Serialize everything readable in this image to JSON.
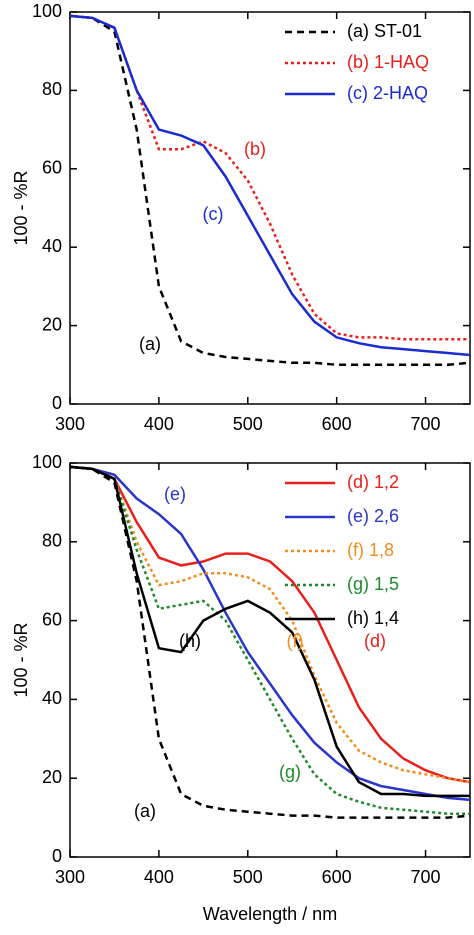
{
  "chart_data": [
    {
      "type": "line",
      "y_label": "100 - %R",
      "x": [
        300,
        325,
        350,
        375,
        400,
        425,
        450,
        475,
        500,
        525,
        550,
        575,
        600,
        625,
        650,
        675,
        700,
        725,
        750
      ],
      "xlim": [
        300,
        750
      ],
      "xticks": [
        300,
        400,
        500,
        600,
        700
      ],
      "ylim": [
        0,
        100
      ],
      "yticks": [
        0,
        20,
        40,
        60,
        80,
        100
      ],
      "legend": "upper right",
      "series": [
        {
          "name": "(a) ST-01",
          "color": "#000000",
          "dash": "dashed",
          "values": [
            99,
            98.5,
            95,
            70,
            30,
            16,
            13,
            12,
            11.5,
            11,
            10.5,
            10.5,
            10,
            10,
            10,
            10,
            10,
            10,
            10.5
          ]
        },
        {
          "name": "(b) 1-HAQ",
          "color": "#e8201c",
          "dash": "dotted",
          "values": [
            99,
            98.5,
            96,
            80,
            65,
            65,
            67,
            64,
            57,
            46,
            33,
            23,
            18,
            17,
            17,
            16.5,
            16.5,
            16.5,
            16.5
          ]
        },
        {
          "name": "(c) 2-HAQ",
          "color": "#1a2bd0",
          "dash": "solid",
          "values": [
            99,
            98.5,
            96,
            80,
            70,
            68.5,
            66,
            58,
            48,
            38,
            28,
            21,
            17,
            15.5,
            14.5,
            14,
            13.5,
            13,
            12.5
          ]
        }
      ],
      "annotations": [
        {
          "text": "(a)",
          "color": "#000000"
        },
        {
          "text": "(b)",
          "color": "#e8201c"
        },
        {
          "text": "(c)",
          "color": "#1a2bd0"
        }
      ]
    },
    {
      "type": "line",
      "x_label": "Wavelength / nm",
      "y_label": "100 - %R",
      "x": [
        300,
        325,
        350,
        375,
        400,
        425,
        450,
        475,
        500,
        525,
        550,
        575,
        600,
        625,
        650,
        675,
        700,
        725,
        750
      ],
      "xlim": [
        300,
        750
      ],
      "xticks": [
        300,
        400,
        500,
        600,
        700
      ],
      "ylim": [
        0,
        100
      ],
      "yticks": [
        0,
        20,
        40,
        60,
        80,
        100
      ],
      "legend": "upper right",
      "series": [
        {
          "name": "(d) 1,2",
          "color": "#e8201c",
          "dash": "solid",
          "values": [
            99,
            98.5,
            96,
            85,
            76,
            74,
            75,
            77,
            77,
            75,
            70,
            62,
            50,
            38,
            30,
            25,
            22,
            20,
            19
          ]
        },
        {
          "name": "(e) 2,6",
          "color": "#2a36c8",
          "dash": "solid",
          "values": [
            99,
            98.5,
            97,
            91,
            87,
            82,
            73,
            62,
            52,
            44,
            36,
            29,
            24,
            20,
            18,
            17,
            16,
            15,
            14.5
          ]
        },
        {
          "name": "(f) 1,8",
          "color": "#f28c1e",
          "dash": "dotted",
          "values": [
            99,
            98.5,
            96,
            80,
            69,
            70,
            72,
            72,
            71,
            68,
            60,
            46,
            34,
            27,
            24,
            22,
            21,
            20,
            19
          ]
        },
        {
          "name": "(g) 1,5",
          "color": "#1e8a2a",
          "dash": "dotted",
          "values": [
            99,
            98.5,
            96,
            78,
            63,
            64,
            65,
            60,
            50,
            40,
            30,
            21,
            16,
            14,
            12.5,
            12,
            11.5,
            11,
            11
          ]
        },
        {
          "name": "(h) 1,4",
          "color": "#000000",
          "dash": "solid",
          "values": [
            99,
            98.5,
            96,
            72,
            53,
            52,
            60,
            63,
            65,
            62,
            57,
            45,
            28,
            19,
            16,
            16,
            15.5,
            15.5,
            15.5
          ]
        },
        {
          "name": "(a)",
          "color": "#000000",
          "dash": "dashed",
          "values": [
            99,
            98.5,
            95,
            70,
            30,
            16,
            13,
            12,
            11.5,
            11,
            10.5,
            10.5,
            10,
            10,
            10,
            10,
            10,
            10,
            10.5
          ]
        }
      ],
      "legend_count": 5,
      "annotations": [
        {
          "text": "(e)",
          "color": "#2a36c8"
        },
        {
          "text": "(h)",
          "color": "#000000"
        },
        {
          "text": "(f)",
          "color": "#f28c1e"
        },
        {
          "text": "(d)",
          "color": "#e8201c"
        },
        {
          "text": "(g)",
          "color": "#1e8a2a"
        },
        {
          "text": "(a)",
          "color": "#000000"
        }
      ]
    }
  ]
}
